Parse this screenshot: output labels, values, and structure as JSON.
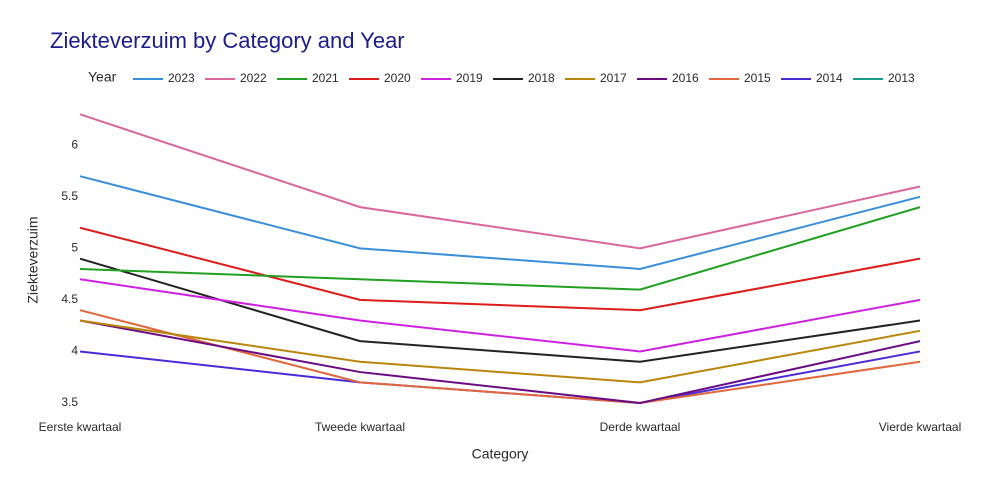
{
  "chart_data": {
    "type": "line",
    "title": "Ziekteverzuim by Category and Year",
    "x_label": "Category",
    "y_label": "Ziekteverzuim",
    "legend_title": "Year",
    "legend": "top",
    "grid": false,
    "categories": [
      "Eerste kwartaal",
      "Tweede kwartaal",
      "Derde kwartaal",
      "Vierde kwartaal"
    ],
    "ylim": [
      3.5,
      6.4
    ],
    "yticks": [
      3.5,
      4,
      4.5,
      5,
      5.5,
      6
    ],
    "series": [
      {
        "name": "2023",
        "color": "#3a8fd9",
        "values": [
          5.7,
          5.0,
          4.8,
          5.5
        ]
      },
      {
        "name": "2022",
        "color": "#d9679e",
        "values": [
          6.3,
          5.4,
          5.0,
          5.6
        ]
      },
      {
        "name": "2021",
        "color": "#22a022",
        "values": [
          4.8,
          4.7,
          4.6,
          5.4
        ]
      },
      {
        "name": "2020",
        "color": "#dd1c1c",
        "values": [
          5.2,
          4.5,
          4.4,
          4.9
        ]
      },
      {
        "name": "2019",
        "color": "#cc22e0",
        "values": [
          4.7,
          4.3,
          4.0,
          4.5
        ]
      },
      {
        "name": "2018",
        "color": "#222222",
        "values": [
          4.9,
          4.1,
          3.9,
          4.3
        ]
      },
      {
        "name": "2017",
        "color": "#b8860b",
        "values": [
          4.3,
          3.9,
          3.7,
          4.2
        ]
      },
      {
        "name": "2016",
        "color": "#6a0d83",
        "values": [
          4.3,
          3.8,
          3.5,
          4.1
        ]
      },
      {
        "name": "2015",
        "color": "#e0683c",
        "values": [
          4.4,
          3.7,
          3.5,
          3.9
        ]
      },
      {
        "name": "2014",
        "color": "#4b2bd6",
        "values": [
          4.0,
          3.7,
          3.5,
          4.0
        ]
      },
      {
        "name": "2013",
        "color": "#1a9a8a",
        "values": [
          null,
          null,
          null,
          null
        ]
      }
    ]
  }
}
